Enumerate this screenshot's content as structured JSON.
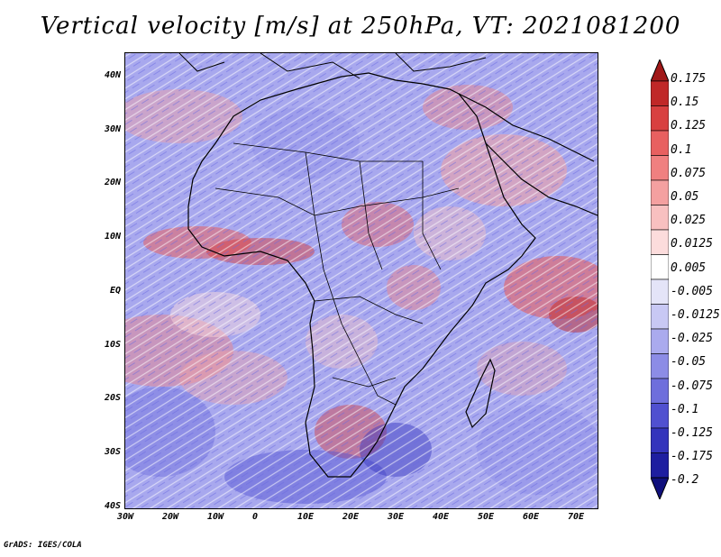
{
  "title": "Vertical velocity [m/s] at 250hPa, VT: 2021081200",
  "footer": "GrADS: IGES/COLA",
  "lat_labels": [
    "40N",
    "30N",
    "20N",
    "10N",
    "EQ",
    "10S",
    "20S",
    "30S",
    "40S"
  ],
  "lon_labels": [
    "30W",
    "20W",
    "10W",
    "0",
    "10E",
    "20E",
    "30E",
    "40E",
    "50E",
    "60E",
    "70E"
  ],
  "colorbar": {
    "labels": [
      "0.175",
      "0.15",
      "0.125",
      "0.1",
      "0.075",
      "0.05",
      "0.025",
      "0.0125",
      "0.005",
      "-0.005",
      "-0.0125",
      "-0.025",
      "-0.05",
      "-0.075",
      "-0.1",
      "-0.125",
      "-0.175",
      "-0.2"
    ],
    "colors": [
      "#a01818",
      "#c02828",
      "#d84040",
      "#e86060",
      "#f08080",
      "#f4a0a0",
      "#f8c0c0",
      "#fcdcdc",
      "#ffffff",
      "#e4e4f8",
      "#c8c8f4",
      "#aaaaee",
      "#8c8ce6",
      "#6e6edc",
      "#5050d0",
      "#3434bc",
      "#1e1ea0",
      "#10107c"
    ]
  }
}
